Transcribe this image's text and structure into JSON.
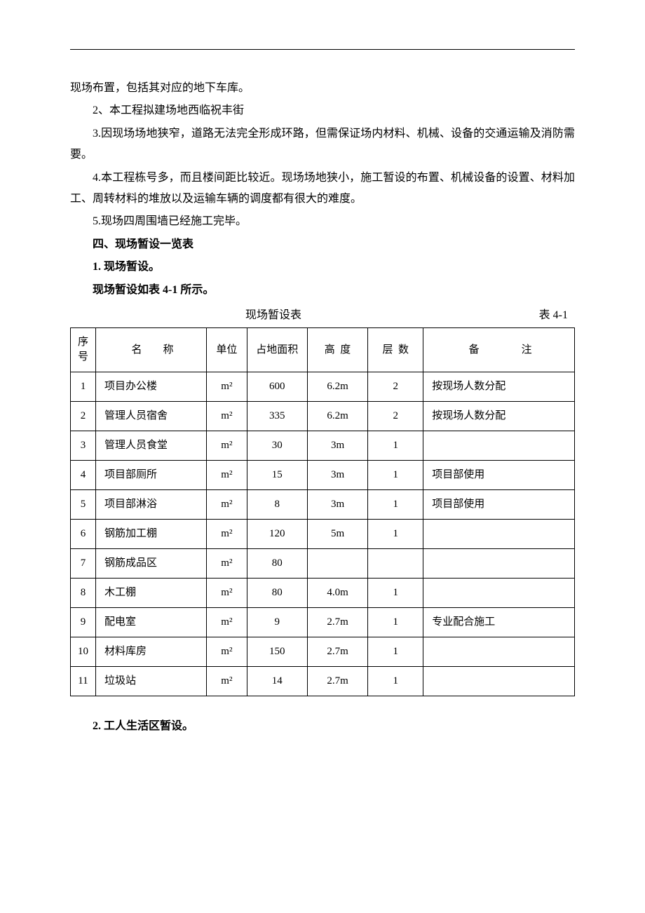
{
  "topRule": true,
  "paragraphs": [
    {
      "text": "现场布置，包括其对应的地下车库。",
      "indent": false,
      "bold": false
    },
    {
      "text": "2、本工程拟建场地西临祝丰街",
      "indent": true,
      "bold": false
    },
    {
      "text": "3.因现场场地狭窄，道路无法完全形成环路，但需保证场内材料、机械、设备的交通运输及消防需要。",
      "indent": true,
      "bold": false
    },
    {
      "text": "4.本工程栋号多，而且楼间距比较近。现场场地狭小，施工暂设的布置、机械设备的设置、材料加工、周转材料的堆放以及运输车辆的调度都有很大的难度。",
      "indent": true,
      "bold": false
    },
    {
      "text": "5.现场四周围墙已经施工完毕。",
      "indent": true,
      "bold": false
    },
    {
      "text": "四、现场暂设一览表",
      "indent": true,
      "bold": true
    },
    {
      "text": "1. 现场暂设。",
      "indent": true,
      "bold": true
    },
    {
      "text": "现场暂设如表 4-1 所示。",
      "indent": true,
      "bold": true
    }
  ],
  "tableTitleCenter": "现场暂设表",
  "tableTitleRight": "表 4-1",
  "tableHeaders": {
    "seq": "序号",
    "name": "名　　称",
    "unit": "单位",
    "area": "占地面积",
    "height": "高 度",
    "floor": "层 数",
    "remark": "备　　　　注"
  },
  "tableRows": [
    {
      "seq": "1",
      "name": "项目办公楼",
      "unit": "m²",
      "area": "600",
      "height": "6.2m",
      "floor": "2",
      "remark": "按现场人数分配"
    },
    {
      "seq": "2",
      "name": "管理人员宿舍",
      "unit": "m²",
      "area": "335",
      "height": "6.2m",
      "floor": "2",
      "remark": "按现场人数分配"
    },
    {
      "seq": "3",
      "name": "管理人员食堂",
      "unit": "m²",
      "area": "30",
      "height": "3m",
      "floor": "1",
      "remark": ""
    },
    {
      "seq": "4",
      "name": "项目部厕所",
      "unit": "m²",
      "area": "15",
      "height": "3m",
      "floor": "1",
      "remark": "项目部使用"
    },
    {
      "seq": "5",
      "name": "项目部淋浴",
      "unit": "m²",
      "area": "8",
      "height": "3m",
      "floor": "1",
      "remark": "项目部使用"
    },
    {
      "seq": "6",
      "name": "钢筋加工棚",
      "unit": "m²",
      "area": "120",
      "height": "5m",
      "floor": "1",
      "remark": ""
    },
    {
      "seq": "7",
      "name": "钢筋成品区",
      "unit": "m²",
      "area": "80",
      "height": "",
      "floor": "",
      "remark": ""
    },
    {
      "seq": "8",
      "name": "木工棚",
      "unit": "m²",
      "area": "80",
      "height": "4.0m",
      "floor": "1",
      "remark": ""
    },
    {
      "seq": "9",
      "name": "配电室",
      "unit": "m²",
      "area": "9",
      "height": "2.7m",
      "floor": "1",
      "remark": "专业配合施工"
    },
    {
      "seq": "10",
      "name": "材料库房",
      "unit": "m²",
      "area": "150",
      "height": "2.7m",
      "floor": "1",
      "remark": ""
    },
    {
      "seq": "11",
      "name": "垃圾站",
      "unit": "m²",
      "area": "14",
      "height": "2.7m",
      "floor": "1",
      "remark": ""
    }
  ],
  "afterTable": [
    {
      "text": "2. 工人生活区暂设。",
      "indent": true,
      "bold": true
    }
  ],
  "colors": {
    "text": "#000000",
    "background": "#ffffff",
    "border": "#000000"
  },
  "fontSizes": {
    "body": 16,
    "table": 15
  }
}
